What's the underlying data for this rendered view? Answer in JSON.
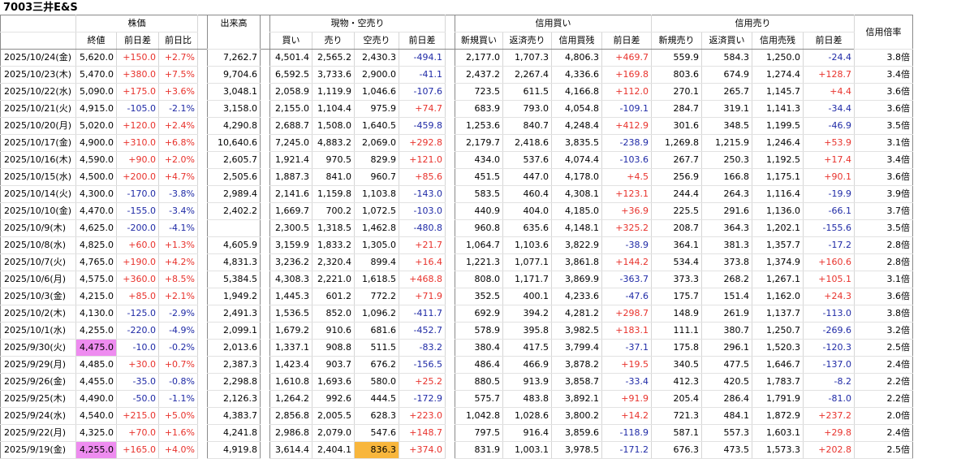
{
  "title": "7003三井E&S",
  "groups": {
    "stock": "株価",
    "volume": "出来高",
    "spot": "現物・空売り",
    "margin_buy": "信用買い",
    "margin_sell": "信用売り",
    "ratio": "信用倍率"
  },
  "subheaders": {
    "close": "終値",
    "diff": "前日差",
    "ratio": "前日比",
    "buy": "買い",
    "sell": "売り",
    "short": "空売り",
    "spot_diff": "前日差",
    "mb_new": "新規買い",
    "mb_repay": "返済売り",
    "mb_bal": "信用買残",
    "mb_diff": "前日差",
    "ms_new": "新規売り",
    "ms_repay": "返済買い",
    "ms_bal": "信用売残",
    "ms_diff": "前日差"
  },
  "colors": {
    "positive": "#e8322c",
    "negative": "#1f2aa6",
    "highlight_pink": "#ee8cf0",
    "highlight_orange": "#f8b63c"
  },
  "rows": [
    {
      "date": "2025/10/24(金)",
      "close": "5,620.0",
      "diff": "+150.0",
      "pct": "+2.7%",
      "vol": "7,262.7",
      "buy": "4,501.4",
      "sell": "2,565.2",
      "short": "2,430.3",
      "sdiff": "-494.1",
      "mbn": "2,177.0",
      "mbr": "1,707.3",
      "mbb": "4,806.3",
      "mbd": "+469.7",
      "msn": "559.9",
      "msr": "584.3",
      "msb": "1,250.0",
      "msd": "-24.4",
      "rt": "3.8倍"
    },
    {
      "date": "2025/10/23(木)",
      "close": "5,470.0",
      "diff": "+380.0",
      "pct": "+7.5%",
      "vol": "9,704.6",
      "buy": "6,592.5",
      "sell": "3,733.6",
      "short": "2,900.0",
      "sdiff": "-41.1",
      "mbn": "2,437.2",
      "mbr": "2,267.4",
      "mbb": "4,336.6",
      "mbd": "+169.8",
      "msn": "803.6",
      "msr": "674.9",
      "msb": "1,274.4",
      "msd": "+128.7",
      "rt": "3.4倍"
    },
    {
      "date": "2025/10/22(水)",
      "close": "5,090.0",
      "diff": "+175.0",
      "pct": "+3.6%",
      "vol": "3,048.1",
      "buy": "2,058.9",
      "sell": "1,119.9",
      "short": "1,046.6",
      "sdiff": "-107.6",
      "mbn": "723.5",
      "mbr": "611.5",
      "mbb": "4,166.8",
      "mbd": "+112.0",
      "msn": "270.1",
      "msr": "265.7",
      "msb": "1,145.7",
      "msd": "+4.4",
      "rt": "3.6倍"
    },
    {
      "date": "2025/10/21(火)",
      "close": "4,915.0",
      "diff": "-105.0",
      "pct": "-2.1%",
      "vol": "3,158.0",
      "buy": "2,155.0",
      "sell": "1,104.4",
      "short": "975.9",
      "sdiff": "+74.7",
      "mbn": "683.9",
      "mbr": "793.0",
      "mbb": "4,054.8",
      "mbd": "-109.1",
      "msn": "284.7",
      "msr": "319.1",
      "msb": "1,141.3",
      "msd": "-34.4",
      "rt": "3.6倍"
    },
    {
      "date": "2025/10/20(月)",
      "close": "5,020.0",
      "diff": "+120.0",
      "pct": "+2.4%",
      "vol": "4,290.8",
      "buy": "2,688.7",
      "sell": "1,508.0",
      "short": "1,640.5",
      "sdiff": "-459.8",
      "mbn": "1,253.6",
      "mbr": "840.7",
      "mbb": "4,248.4",
      "mbd": "+412.9",
      "msn": "301.6",
      "msr": "348.5",
      "msb": "1,199.5",
      "msd": "-46.9",
      "rt": "3.5倍"
    },
    {
      "date": "2025/10/17(金)",
      "close": "4,900.0",
      "diff": "+310.0",
      "pct": "+6.8%",
      "vol": "10,640.6",
      "buy": "7,245.0",
      "sell": "4,883.2",
      "short": "2,069.0",
      "sdiff": "+292.8",
      "mbn": "2,179.7",
      "mbr": "2,418.6",
      "mbb": "3,835.5",
      "mbd": "-238.9",
      "msn": "1,269.8",
      "msr": "1,215.9",
      "msb": "1,246.4",
      "msd": "+53.9",
      "rt": "3.1倍"
    },
    {
      "date": "2025/10/16(木)",
      "close": "4,590.0",
      "diff": "+90.0",
      "pct": "+2.0%",
      "vol": "2,605.7",
      "buy": "1,921.4",
      "sell": "970.5",
      "short": "829.9",
      "sdiff": "+121.0",
      "mbn": "434.0",
      "mbr": "537.6",
      "mbb": "4,074.4",
      "mbd": "-103.6",
      "msn": "267.7",
      "msr": "250.3",
      "msb": "1,192.5",
      "msd": "+17.4",
      "rt": "3.4倍"
    },
    {
      "date": "2025/10/15(水)",
      "close": "4,500.0",
      "diff": "+200.0",
      "pct": "+4.7%",
      "vol": "2,505.6",
      "buy": "1,887.3",
      "sell": "841.0",
      "short": "960.7",
      "sdiff": "+85.6",
      "mbn": "451.5",
      "mbr": "447.0",
      "mbb": "4,178.0",
      "mbd": "+4.5",
      "msn": "256.9",
      "msr": "166.8",
      "msb": "1,175.1",
      "msd": "+90.1",
      "rt": "3.6倍"
    },
    {
      "date": "2025/10/14(火)",
      "close": "4,300.0",
      "diff": "-170.0",
      "pct": "-3.8%",
      "vol": "2,989.4",
      "buy": "2,141.6",
      "sell": "1,159.8",
      "short": "1,103.8",
      "sdiff": "-143.0",
      "mbn": "583.5",
      "mbr": "460.4",
      "mbb": "4,308.1",
      "mbd": "+123.1",
      "msn": "244.4",
      "msr": "264.3",
      "msb": "1,116.4",
      "msd": "-19.9",
      "rt": "3.9倍"
    },
    {
      "date": "2025/10/10(金)",
      "close": "4,470.0",
      "diff": "-155.0",
      "pct": "-3.4%",
      "vol": "2,402.2",
      "buy": "1,669.7",
      "sell": "700.2",
      "short": "1,072.5",
      "sdiff": "-103.0",
      "mbn": "440.9",
      "mbr": "404.0",
      "mbb": "4,185.0",
      "mbd": "+36.9",
      "msn": "225.5",
      "msr": "291.6",
      "msb": "1,136.0",
      "msd": "-66.1",
      "rt": "3.7倍"
    },
    {
      "date": "2025/10/9(木)",
      "close": "4,625.0",
      "diff": "-200.0",
      "pct": "-4.1%",
      "vol": "",
      "buy": "2,300.5",
      "sell": "1,318.5",
      "short": "1,462.8",
      "sdiff": "-480.8",
      "mbn": "960.8",
      "mbr": "635.6",
      "mbb": "4,148.1",
      "mbd": "+325.2",
      "msn": "208.7",
      "msr": "364.3",
      "msb": "1,202.1",
      "msd": "-155.6",
      "rt": "3.5倍"
    },
    {
      "date": "2025/10/8(水)",
      "close": "4,825.0",
      "diff": "+60.0",
      "pct": "+1.3%",
      "vol": "4,605.9",
      "buy": "3,159.9",
      "sell": "1,833.2",
      "short": "1,305.0",
      "sdiff": "+21.7",
      "mbn": "1,064.7",
      "mbr": "1,103.6",
      "mbb": "3,822.9",
      "mbd": "-38.9",
      "msn": "364.1",
      "msr": "381.3",
      "msb": "1,357.7",
      "msd": "-17.2",
      "rt": "2.8倍"
    },
    {
      "date": "2025/10/7(火)",
      "close": "4,765.0",
      "diff": "+190.0",
      "pct": "+4.2%",
      "vol": "4,831.3",
      "buy": "3,236.2",
      "sell": "2,320.4",
      "short": "899.4",
      "sdiff": "+16.4",
      "mbn": "1,221.3",
      "mbr": "1,077.1",
      "mbb": "3,861.8",
      "mbd": "+144.2",
      "msn": "534.4",
      "msr": "373.8",
      "msb": "1,374.9",
      "msd": "+160.6",
      "rt": "2.8倍"
    },
    {
      "date": "2025/10/6(月)",
      "close": "4,575.0",
      "diff": "+360.0",
      "pct": "+8.5%",
      "vol": "5,384.5",
      "buy": "4,308.3",
      "sell": "2,221.0",
      "short": "1,618.5",
      "sdiff": "+468.8",
      "mbn": "808.0",
      "mbr": "1,171.7",
      "mbb": "3,869.9",
      "mbd": "-363.7",
      "msn": "373.3",
      "msr": "268.2",
      "msb": "1,267.1",
      "msd": "+105.1",
      "rt": "3.1倍"
    },
    {
      "date": "2025/10/3(金)",
      "close": "4,215.0",
      "diff": "+85.0",
      "pct": "+2.1%",
      "vol": "1,949.2",
      "buy": "1,445.3",
      "sell": "601.2",
      "short": "772.2",
      "sdiff": "+71.9",
      "mbn": "352.5",
      "mbr": "400.1",
      "mbb": "4,233.6",
      "mbd": "-47.6",
      "msn": "175.7",
      "msr": "151.4",
      "msb": "1,162.0",
      "msd": "+24.3",
      "rt": "3.6倍"
    },
    {
      "date": "2025/10/2(木)",
      "close": "4,130.0",
      "diff": "-125.0",
      "pct": "-2.9%",
      "vol": "2,491.3",
      "buy": "1,536.5",
      "sell": "852.0",
      "short": "1,096.2",
      "sdiff": "-411.7",
      "mbn": "692.9",
      "mbr": "394.2",
      "mbb": "4,281.2",
      "mbd": "+298.7",
      "msn": "148.9",
      "msr": "261.9",
      "msb": "1,137.7",
      "msd": "-113.0",
      "rt": "3.8倍"
    },
    {
      "date": "2025/10/1(水)",
      "close": "4,255.0",
      "diff": "-220.0",
      "pct": "-4.9%",
      "vol": "2,099.1",
      "buy": "1,679.2",
      "sell": "910.6",
      "short": "681.6",
      "sdiff": "-452.7",
      "mbn": "578.9",
      "mbr": "395.8",
      "mbb": "3,982.5",
      "mbd": "+183.1",
      "msn": "111.1",
      "msr": "380.7",
      "msb": "1,250.7",
      "msd": "-269.6",
      "rt": "3.2倍"
    },
    {
      "date": "2025/9/30(火)",
      "close": "4,475.0",
      "diff": "-10.0",
      "pct": "-0.2%",
      "vol": "2,013.6",
      "buy": "1,337.1",
      "sell": "908.8",
      "short": "511.5",
      "sdiff": "-83.2",
      "mbn": "380.4",
      "mbr": "417.5",
      "mbb": "3,799.4",
      "mbd": "-37.1",
      "msn": "175.8",
      "msr": "296.1",
      "msb": "1,520.3",
      "msd": "-120.3",
      "rt": "2.5倍",
      "hl_close": "pink"
    },
    {
      "date": "2025/9/29(月)",
      "close": "4,485.0",
      "diff": "+30.0",
      "pct": "+0.7%",
      "vol": "2,387.3",
      "buy": "1,423.4",
      "sell": "903.7",
      "short": "676.2",
      "sdiff": "-156.5",
      "mbn": "486.4",
      "mbr": "466.9",
      "mbb": "3,878.2",
      "mbd": "+19.5",
      "msn": "340.5",
      "msr": "477.5",
      "msb": "1,646.7",
      "msd": "-137.0",
      "rt": "2.4倍"
    },
    {
      "date": "2025/9/26(金)",
      "close": "4,455.0",
      "diff": "-35.0",
      "pct": "-0.8%",
      "vol": "2,298.8",
      "buy": "1,610.8",
      "sell": "1,693.6",
      "short": "580.0",
      "sdiff": "+25.2",
      "mbn": "880.5",
      "mbr": "913.9",
      "mbb": "3,858.7",
      "mbd": "-33.4",
      "msn": "412.3",
      "msr": "420.5",
      "msb": "1,783.7",
      "msd": "-8.2",
      "rt": "2.2倍"
    },
    {
      "date": "2025/9/25(木)",
      "close": "4,490.0",
      "diff": "-50.0",
      "pct": "-1.1%",
      "vol": "2,126.3",
      "buy": "1,264.2",
      "sell": "992.6",
      "short": "444.5",
      "sdiff": "-172.9",
      "mbn": "575.7",
      "mbr": "483.8",
      "mbb": "3,892.1",
      "mbd": "+91.9",
      "msn": "205.4",
      "msr": "286.4",
      "msb": "1,791.9",
      "msd": "-81.0",
      "rt": "2.2倍"
    },
    {
      "date": "2025/9/24(水)",
      "close": "4,540.0",
      "diff": "+215.0",
      "pct": "+5.0%",
      "vol": "4,383.7",
      "buy": "2,856.8",
      "sell": "2,005.5",
      "short": "628.3",
      "sdiff": "+223.0",
      "mbn": "1,042.8",
      "mbr": "1,028.6",
      "mbb": "3,800.2",
      "mbd": "+14.2",
      "msn": "721.3",
      "msr": "484.1",
      "msb": "1,872.9",
      "msd": "+237.2",
      "rt": "2.0倍"
    },
    {
      "date": "2025/9/22(月)",
      "close": "4,325.0",
      "diff": "+70.0",
      "pct": "+1.6%",
      "vol": "4,241.8",
      "buy": "2,986.8",
      "sell": "2,079.0",
      "short": "547.6",
      "sdiff": "+148.7",
      "mbn": "797.5",
      "mbr": "916.4",
      "mbb": "3,859.6",
      "mbd": "-118.9",
      "msn": "587.1",
      "msr": "557.3",
      "msb": "1,603.1",
      "msd": "+29.8",
      "rt": "2.4倍"
    },
    {
      "date": "2025/9/19(金)",
      "close": "4,255.0",
      "diff": "+165.0",
      "pct": "+4.0%",
      "vol": "4,919.8",
      "buy": "3,614.4",
      "sell": "2,404.1",
      "short": "836.3",
      "sdiff": "+374.0",
      "mbn": "831.9",
      "mbr": "1,003.1",
      "mbb": "3,978.5",
      "mbd": "-171.2",
      "msn": "676.3",
      "msr": "473.5",
      "msb": "1,573.3",
      "msd": "+202.8",
      "rt": "2.5倍",
      "hl_close": "pink",
      "hl_short": "orange"
    }
  ]
}
